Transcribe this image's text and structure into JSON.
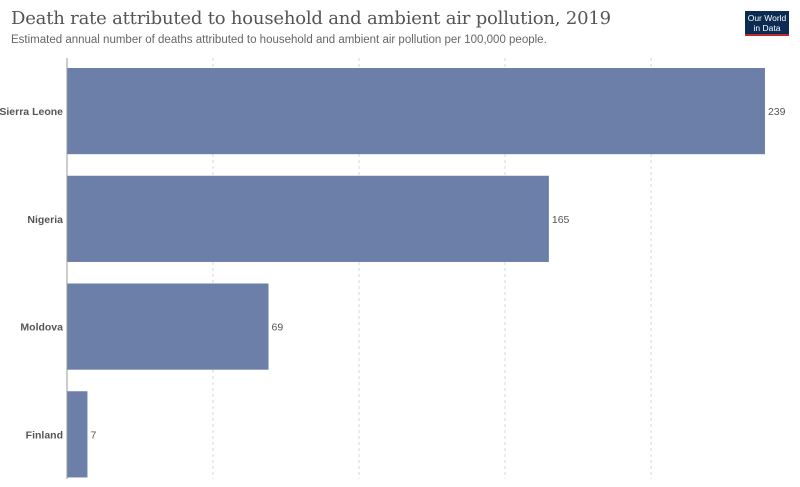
{
  "header": {
    "title": "Death rate attributed to household and ambient air pollution, 2019",
    "subtitle": "Estimated annual number of deaths attributed to household and ambient air pollution per 100,000 people."
  },
  "logo": {
    "line1": "Our World",
    "line2": "in Data",
    "bg_color": "#0b2b52",
    "accent_color": "#c0282d"
  },
  "chart_data": {
    "type": "bar",
    "orientation": "horizontal",
    "title": "Death rate attributed to household and ambient air pollution, 2019",
    "categories": [
      "Sierra Leone",
      "Nigeria",
      "Moldova",
      "Finland"
    ],
    "values": [
      239,
      165,
      69,
      7
    ],
    "value_labels": [
      "239",
      "165",
      "69",
      "7"
    ],
    "xlim": [
      0,
      240
    ],
    "grid": "vertical dashed",
    "bar_color": "#6b7fa8"
  }
}
